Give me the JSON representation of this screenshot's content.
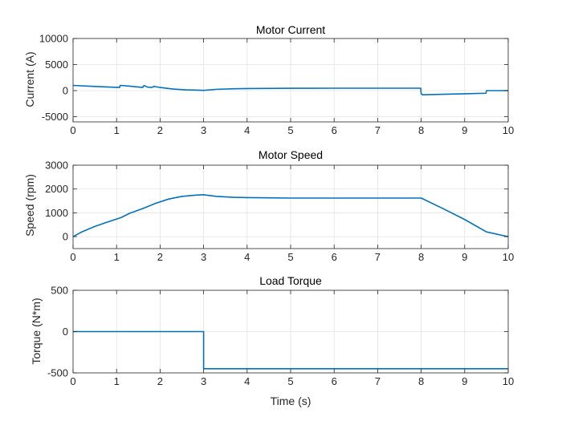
{
  "chart_data": [
    {
      "type": "line",
      "title": "Motor Current",
      "xlabel": "",
      "ylabel": "Current (A)",
      "xlim": [
        0,
        10
      ],
      "ylim": [
        -6000,
        10000
      ],
      "xticks": [
        0,
        1,
        2,
        3,
        4,
        5,
        6,
        7,
        8,
        9,
        10
      ],
      "yticks": [
        -5000,
        0,
        5000,
        10000
      ],
      "grid": true,
      "color": "#0072BD",
      "series": [
        {
          "x": [
            0,
            0.5,
            1.07,
            1.08,
            1.1,
            1.3,
            1.6,
            1.62,
            1.64,
            1.7,
            1.8,
            1.86,
            1.9,
            2.0,
            2.3,
            2.6,
            2.8,
            3.0,
            3.3,
            3.7,
            4.0,
            5.0,
            6.0,
            7.0,
            7.99,
            8.0,
            8.03,
            9.0,
            9.49,
            9.5,
            10.0
          ],
          "y": [
            1000,
            800,
            600,
            950,
            1000,
            850,
            600,
            900,
            950,
            700,
            600,
            800,
            750,
            600,
            300,
            150,
            100,
            50,
            250,
            350,
            400,
            450,
            460,
            460,
            460,
            -600,
            -800,
            -600,
            -500,
            0,
            0
          ]
        }
      ]
    },
    {
      "type": "line",
      "title": "Motor Speed",
      "xlabel": "",
      "ylabel": "Speed (rpm)",
      "xlim": [
        0,
        10
      ],
      "ylim": [
        -500,
        3000
      ],
      "xticks": [
        0,
        1,
        2,
        3,
        4,
        5,
        6,
        7,
        8,
        9,
        10
      ],
      "yticks": [
        0,
        1000,
        2000,
        3000
      ],
      "grid": true,
      "color": "#0072BD",
      "series": [
        {
          "x": [
            0,
            0.2,
            0.5,
            0.8,
            1.1,
            1.3,
            1.6,
            1.9,
            2.2,
            2.5,
            2.8,
            3.0,
            3.3,
            3.7,
            4.0,
            4.5,
            5.0,
            6.0,
            7.0,
            8.0,
            8.5,
            9.0,
            9.5,
            10.0
          ],
          "y": [
            0,
            200,
            430,
            620,
            800,
            980,
            1180,
            1400,
            1580,
            1690,
            1740,
            1760,
            1690,
            1650,
            1640,
            1630,
            1620,
            1620,
            1620,
            1620,
            1180,
            720,
            200,
            0
          ]
        }
      ]
    },
    {
      "type": "line",
      "title": "Load Torque",
      "xlabel": "Time (s)",
      "ylabel": "Torque (N*m)",
      "xlim": [
        0,
        10
      ],
      "ylim": [
        -500,
        500
      ],
      "xticks": [
        0,
        1,
        2,
        3,
        4,
        5,
        6,
        7,
        8,
        9,
        10
      ],
      "yticks": [
        -500,
        0,
        500
      ],
      "grid": true,
      "color": "#0072BD",
      "series": [
        {
          "x": [
            0,
            3.0,
            3.0,
            10.0
          ],
          "y": [
            0,
            0,
            -450,
            -450
          ]
        }
      ]
    }
  ]
}
